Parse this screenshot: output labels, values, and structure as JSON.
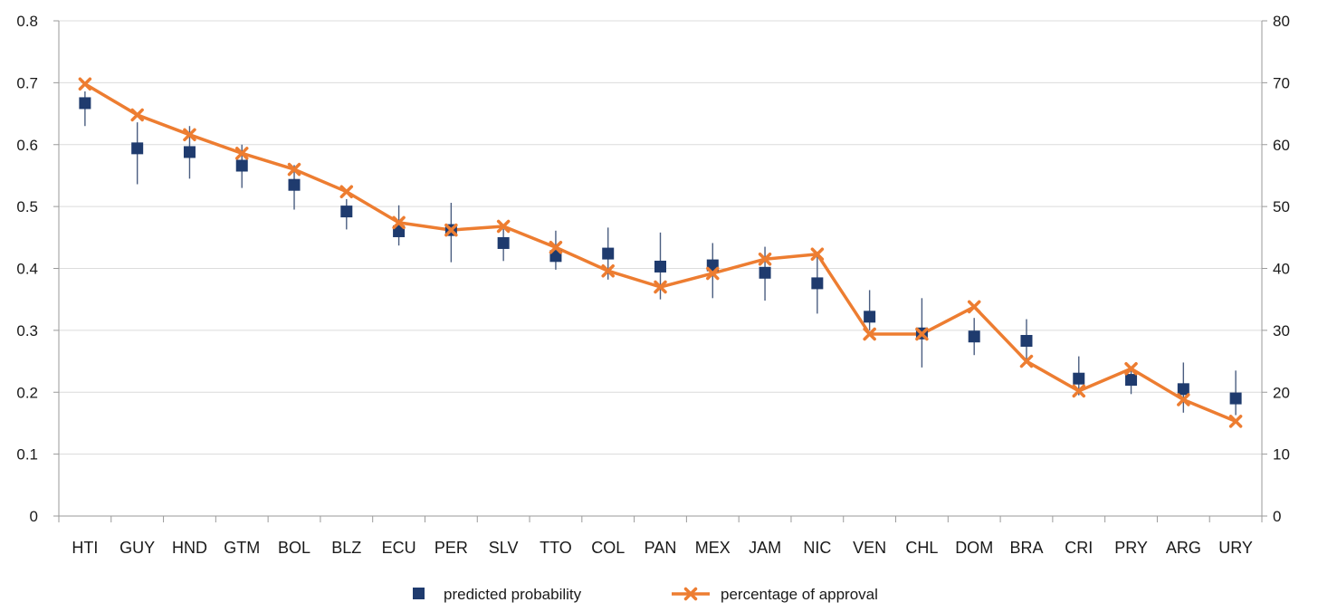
{
  "chart_data": {
    "type": "line",
    "categories": [
      "HTI",
      "GUY",
      "HND",
      "GTM",
      "BOL",
      "BLZ",
      "ECU",
      "PER",
      "SLV",
      "TTO",
      "COL",
      "PAN",
      "MEX",
      "JAM",
      "NIC",
      "VEN",
      "CHL",
      "DOM",
      "BRA",
      "CRI",
      "PRY",
      "ARG",
      "URY"
    ],
    "series": [
      {
        "name": "predicted probability",
        "marker": "square",
        "axis": "left",
        "color": "#1f3b6e",
        "values": [
          0.667,
          0.594,
          0.588,
          0.566,
          0.535,
          0.492,
          0.46,
          0.462,
          0.441,
          0.42,
          0.424,
          0.403,
          0.405,
          0.393,
          0.376,
          0.322,
          0.295,
          0.29,
          0.283,
          0.222,
          0.22,
          0.205,
          0.19
        ],
        "lower": [
          0.63,
          0.536,
          0.545,
          0.53,
          0.495,
          0.463,
          0.437,
          0.41,
          0.412,
          0.398,
          0.382,
          0.35,
          0.352,
          0.348,
          0.327,
          0.3,
          0.24,
          0.26,
          0.25,
          0.195,
          0.197,
          0.167,
          0.163
        ],
        "upper": [
          0.686,
          0.636,
          0.63,
          0.6,
          0.567,
          0.512,
          0.502,
          0.506,
          0.464,
          0.461,
          0.466,
          0.458,
          0.441,
          0.435,
          0.42,
          0.365,
          0.352,
          0.32,
          0.318,
          0.258,
          0.242,
          0.248,
          0.235
        ]
      },
      {
        "name": "percentage of approval",
        "marker": "x",
        "axis": "right",
        "color": "#ed7d31",
        "values": [
          69.8,
          64.8,
          61.6,
          58.6,
          56.0,
          52.4,
          47.4,
          46.2,
          46.8,
          43.4,
          39.6,
          37.0,
          39.2,
          41.5,
          42.3,
          29.4,
          29.4,
          33.8,
          25.0,
          20.2,
          23.8,
          18.8,
          15.3
        ]
      }
    ],
    "y_left": {
      "ylim": [
        0,
        0.8
      ],
      "ticks": [
        "0",
        "0.1",
        "0.2",
        "0.3",
        "0.4",
        "0.5",
        "0.6",
        "0.7",
        "0.8"
      ]
    },
    "y_right": {
      "ylim": [
        0,
        80
      ],
      "ticks": [
        "0",
        "10",
        "20",
        "30",
        "40",
        "50",
        "60",
        "70",
        "80"
      ]
    },
    "grid": true,
    "legend": "bottom-center",
    "title": "",
    "xlabel": "",
    "ylabel": ""
  }
}
